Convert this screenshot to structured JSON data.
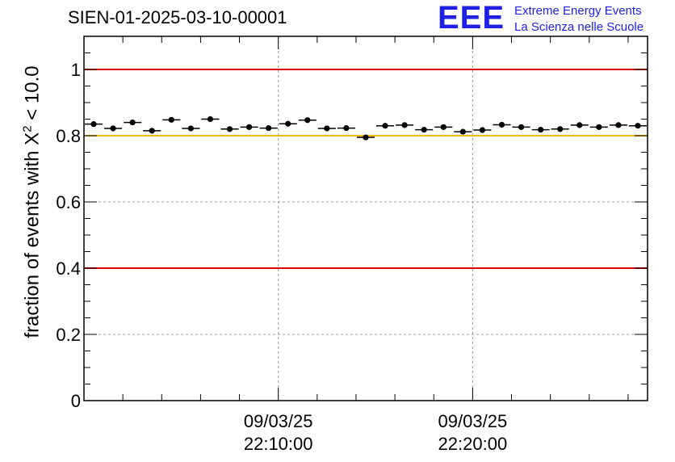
{
  "header": {
    "title": "SIEN-01-2025-03-10-00001",
    "logo_mark": "EEE",
    "logo_line1": "Extreme Energy Events",
    "logo_line2": "La Scienza nelle Scuole"
  },
  "colors": {
    "red_line": "#e00000",
    "yellow_line": "#f5b800",
    "logo_blue": "#1f1fe6",
    "marker": "#000000"
  },
  "chart_data": {
    "type": "scatter",
    "title": "SIEN-01-2025-03-10-00001",
    "xlabel": "",
    "ylabel_prefix": "fraction of events with X",
    "ylabel_sup": "2",
    "ylabel_suffix": " < 10.0",
    "ylim": [
      0,
      1.1
    ],
    "yticks": [
      0,
      0.2,
      0.4,
      0.6,
      0.8,
      1
    ],
    "ytick_labels": [
      "0",
      "0.2",
      "0.4",
      "0.6",
      "0.8",
      "1"
    ],
    "xlim_minutes": [
      0,
      29
    ],
    "xticks": [
      {
        "minute": 10,
        "date": "09/03/25",
        "time": "22:10:00"
      },
      {
        "minute": 20,
        "date": "09/03/25",
        "time": "22:20:00"
      }
    ],
    "grid": true,
    "reference_lines": [
      {
        "y": 1.0,
        "color": "red"
      },
      {
        "y": 0.8,
        "color": "yellow"
      },
      {
        "y": 0.4,
        "color": "red"
      }
    ],
    "x_minutes": [
      0.5,
      1.5,
      2.5,
      3.5,
      4.5,
      5.5,
      6.5,
      7.5,
      8.5,
      9.5,
      10.5,
      11.5,
      12.5,
      13.5,
      14.5,
      15.5,
      16.5,
      17.5,
      18.5,
      19.5,
      20.5,
      21.5,
      22.5,
      23.5,
      24.5,
      25.5,
      26.5,
      27.5,
      28.5
    ],
    "values": [
      0.835,
      0.822,
      0.84,
      0.815,
      0.848,
      0.822,
      0.85,
      0.82,
      0.826,
      0.823,
      0.836,
      0.847,
      0.822,
      0.823,
      0.795,
      0.83,
      0.832,
      0.818,
      0.826,
      0.812,
      0.817,
      0.833,
      0.826,
      0.818,
      0.82,
      0.832,
      0.826,
      0.832,
      0.83
    ]
  }
}
